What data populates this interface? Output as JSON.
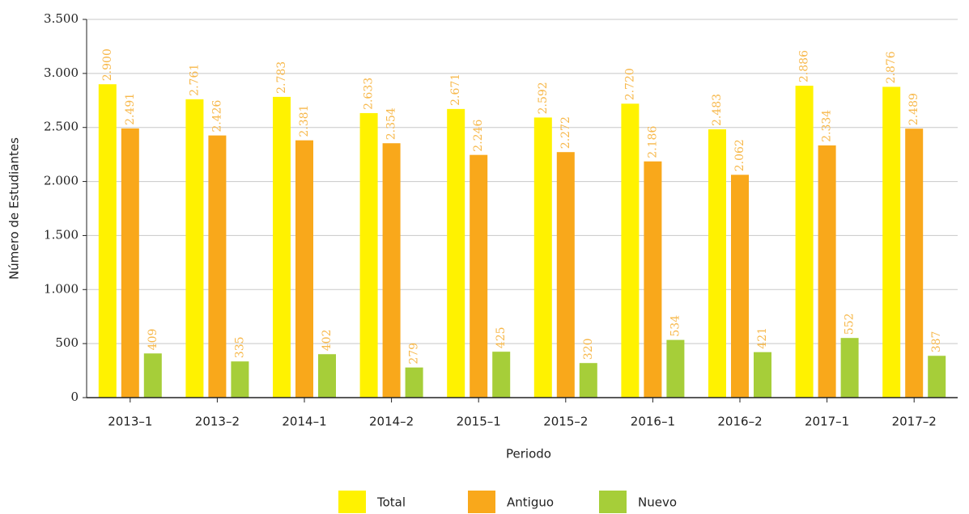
{
  "chart_data": {
    "type": "bar",
    "x_label": "Periodo",
    "y_label": "Número de Estudiantes",
    "categories": [
      "2013–1",
      "2013–2",
      "2014–1",
      "2014–2",
      "2015–1",
      "2015–2",
      "2016–1",
      "2016–2",
      "2017–1",
      "2017–2"
    ],
    "series": [
      {
        "name": "Total",
        "color": "#fff200",
        "values": [
          2900,
          2761,
          2783,
          2633,
          2671,
          2592,
          2720,
          2483,
          2886,
          2876
        ],
        "value_labels": [
          "2.900",
          "2.761",
          "2.783",
          "2.633",
          "2.671",
          "2.592",
          "2.720",
          "2.483",
          "2.886",
          "2.876"
        ]
      },
      {
        "name": "Antiguo",
        "color": "#f9a81b",
        "values": [
          2491,
          2426,
          2381,
          2354,
          2246,
          2272,
          2186,
          2062,
          2334,
          2489
        ],
        "value_labels": [
          "2.491",
          "2.426",
          "2.381",
          "2.354",
          "2.246",
          "2.272",
          "2.186",
          "2.062",
          "2.334",
          "2.489"
        ]
      },
      {
        "name": "Nuevo",
        "color": "#a6ce39",
        "values": [
          409,
          335,
          402,
          279,
          425,
          320,
          534,
          421,
          552,
          387
        ],
        "value_labels": [
          "409",
          "335",
          "402",
          "279",
          "425",
          "320",
          "534",
          "421",
          "552",
          "387"
        ]
      }
    ],
    "ylim": [
      0,
      3500
    ],
    "yticks": [
      0,
      500,
      {
        "value": 1000,
        "label": "1.000"
      },
      {
        "value": 1500,
        "label": "1.500"
      },
      {
        "value": 2000,
        "label": "2.000"
      },
      {
        "value": 2500,
        "label": "2.500"
      },
      {
        "value": 3000,
        "label": "3.000"
      },
      {
        "value": 3500,
        "label": "3.500"
      }
    ],
    "grid": true,
    "legend": "bottom"
  }
}
